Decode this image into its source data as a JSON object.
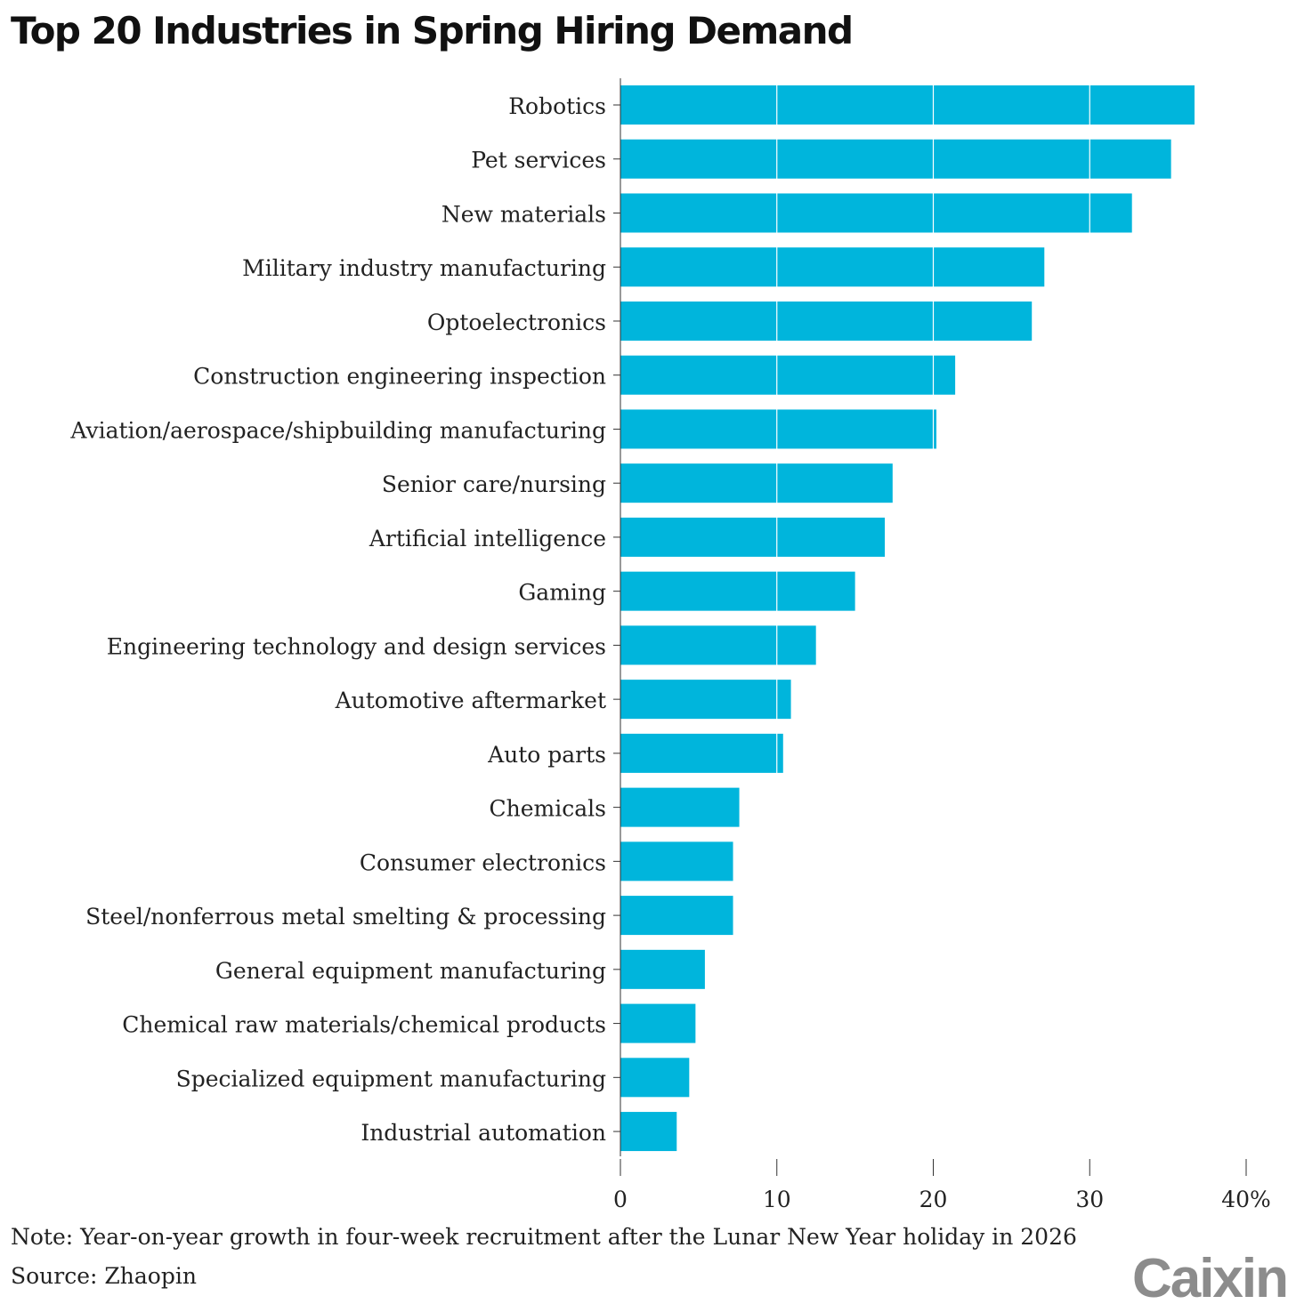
{
  "chart_data": {
    "type": "bar",
    "orientation": "horizontal",
    "title": "Top 20 Industries in Spring Hiring Demand",
    "xlabel": "",
    "ylabel": "",
    "xlim": [
      0,
      40
    ],
    "xticks": [
      0,
      10,
      20,
      30,
      40
    ],
    "xtick_labels": [
      "0",
      "10",
      "20",
      "30",
      "40%"
    ],
    "grid": true,
    "bar_color": "#00b5dc",
    "categories": [
      "Robotics",
      "Pet services",
      "New materials",
      "Military industry manufacturing",
      "Optoelectronics",
      "Construction engineering inspection",
      "Aviation/aerospace/shipbuilding manufacturing",
      "Senior care/nursing",
      "Artificial intelligence",
      "Gaming",
      "Engineering technology and design services",
      "Automotive aftermarket",
      "Auto parts",
      "Chemicals",
      "Consumer electronics",
      "Steel/nonferrous metal smelting & processing",
      "General equipment manufacturing",
      "Chemical raw materials/chemical products",
      "Specialized equipment manufacturing",
      "Industrial automation"
    ],
    "values": [
      36.7,
      35.2,
      32.7,
      27.1,
      26.3,
      21.4,
      20.2,
      17.4,
      16.9,
      15.0,
      12.5,
      10.9,
      10.4,
      7.6,
      7.2,
      7.2,
      5.4,
      4.8,
      4.4,
      3.6
    ]
  },
  "note": "Note: Year-on-year growth in four-week recruitment after the Lunar New Year holiday in 2026",
  "source": "Source: Zhaopin",
  "logo": "Caixin"
}
